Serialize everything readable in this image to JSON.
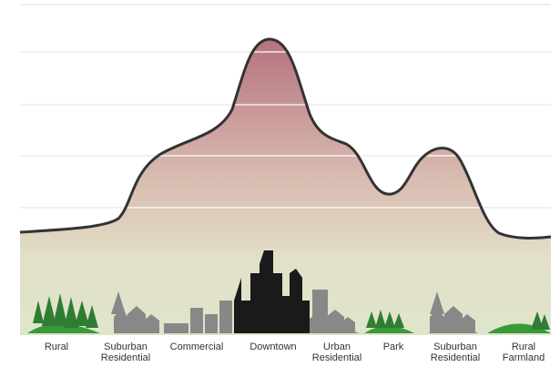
{
  "labels": [
    [
      "Rural"
    ],
    [
      "Suburban",
      "Residential"
    ],
    [
      "Commercial"
    ],
    [
      "Downtown"
    ],
    [
      "Urban",
      "Residential"
    ],
    [
      "Park"
    ],
    [
      "Suburban",
      "Residential"
    ],
    [
      "Rural",
      "Farmland"
    ]
  ]
}
